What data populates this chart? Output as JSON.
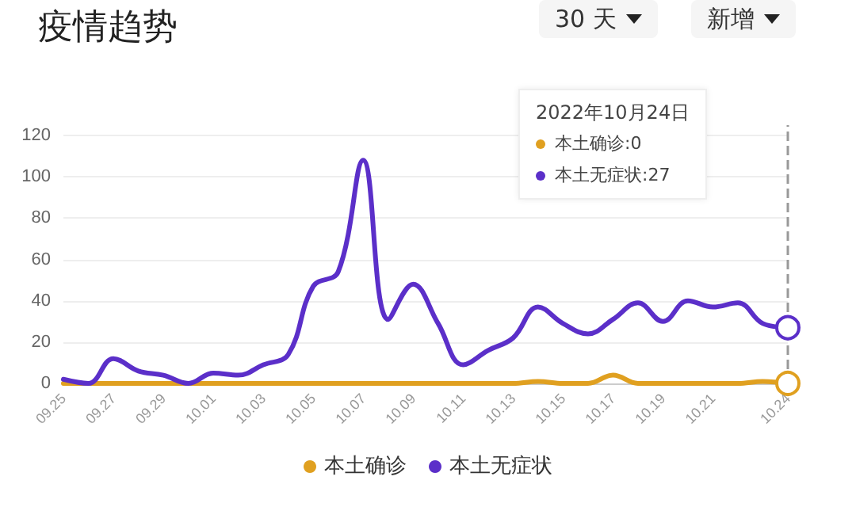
{
  "chart_data": {
    "type": "line",
    "title": "疫情趋势",
    "categories": [
      "09.25",
      null,
      "09.27",
      null,
      "09.29",
      null,
      "10.01",
      null,
      "10.03",
      null,
      "10.05",
      null,
      "10.07",
      null,
      "10.09",
      null,
      "10.11",
      null,
      "10.13",
      null,
      "10.15",
      null,
      "10.17",
      null,
      "10.19",
      null,
      "10.21",
      null,
      null,
      "10.24"
    ],
    "series": [
      {
        "name": "本土确诊",
        "color": "#e0a020",
        "values": [
          0,
          0,
          0,
          0,
          0,
          0,
          0,
          0,
          0,
          0,
          0,
          0,
          0,
          0,
          0,
          0,
          0,
          0,
          0,
          1,
          0,
          0,
          4,
          0,
          0,
          0,
          0,
          0,
          1,
          0
        ]
      },
      {
        "name": "本土无症状",
        "color": "#5b2fc9",
        "values": [
          2,
          0,
          12,
          6,
          4,
          0,
          5,
          4,
          9,
          14,
          47,
          54,
          108,
          31,
          48,
          29,
          9,
          16,
          22,
          37,
          29,
          24,
          31,
          39,
          30,
          40,
          37,
          39,
          29,
          27
        ]
      }
    ],
    "ylim": [
      0,
      125
    ],
    "yticks": [
      0,
      20,
      40,
      60,
      80,
      100,
      120
    ],
    "grid": "y",
    "legend": "bottom",
    "marker": "none",
    "line_style": "solid",
    "ref_lines": [
      {
        "axis": "x",
        "value": "10.24",
        "color": "#999999",
        "line_style": "dashed"
      }
    ],
    "annotations": [
      "2022年10月24日",
      "本土确诊:0",
      "本土无症状:27",
      "30 天",
      "新增"
    ]
  }
}
